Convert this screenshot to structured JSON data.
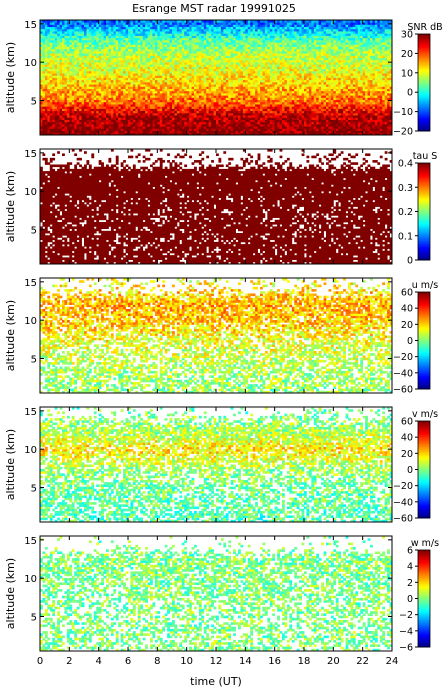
{
  "title": "Esrange MST radar 19991025",
  "xlabel": "time (UT)",
  "x_ticks": [
    0,
    2,
    4,
    6,
    8,
    10,
    12,
    14,
    16,
    18,
    20,
    22,
    24
  ],
  "chart_data": [
    {
      "type": "heatmap",
      "variable": "SNR",
      "colorbar_label": "SNR dB",
      "ylabel": "altitude (km)",
      "xlim": [
        0,
        24
      ],
      "ylim": [
        0.5,
        15.5
      ],
      "y_ticks": [
        5,
        10,
        15
      ],
      "clim": [
        -20,
        30
      ],
      "colorbar_ticks": [
        -20,
        -10,
        0,
        10,
        20,
        30
      ],
      "colorbar_ticklabels": [
        "−20",
        "−10",
        "0",
        "10",
        "20",
        "30"
      ],
      "profile": [
        {
          "altitude": 1,
          "value": 30
        },
        {
          "altitude": 3,
          "value": 27
        },
        {
          "altitude": 5,
          "value": 18
        },
        {
          "altitude": 7,
          "value": 14
        },
        {
          "altitude": 9,
          "value": 10
        },
        {
          "altitude": 11,
          "value": 8
        },
        {
          "altitude": 13,
          "value": 3
        },
        {
          "altitude": 15,
          "value": -8
        }
      ],
      "coverage_by_altitude": [
        {
          "altitude": 1,
          "coverage": 1.0
        },
        {
          "altitude": 15,
          "coverage": 1.0
        }
      ]
    },
    {
      "type": "heatmap",
      "variable": "tau",
      "colorbar_label": "tau S",
      "ylabel": "altitude (km)",
      "xlim": [
        0,
        24
      ],
      "ylim": [
        0.5,
        15.5
      ],
      "y_ticks": [
        5,
        10,
        15
      ],
      "clim": [
        0,
        0.4
      ],
      "colorbar_ticks": [
        0,
        0.1,
        0.2,
        0.3,
        0.4
      ],
      "colorbar_ticklabels": [
        "0",
        "0.1",
        "0.2",
        "0.3",
        "0.4"
      ],
      "profile": [
        {
          "altitude": 1,
          "value": 0.4
        },
        {
          "altitude": 15,
          "value": 0.4
        }
      ],
      "coverage_by_altitude": [
        {
          "altitude": 1,
          "coverage": 0.85
        },
        {
          "altitude": 6,
          "coverage": 0.8
        },
        {
          "altitude": 10,
          "coverage": 0.92
        },
        {
          "altitude": 12.5,
          "coverage": 0.95
        },
        {
          "altitude": 13.5,
          "coverage": 0.25
        },
        {
          "altitude": 15,
          "coverage": 0.1
        }
      ]
    },
    {
      "type": "heatmap",
      "variable": "u",
      "colorbar_label": "u m/s",
      "ylabel": "altitude (km)",
      "xlim": [
        0,
        24
      ],
      "ylim": [
        0.5,
        15.5
      ],
      "y_ticks": [
        5,
        10,
        15
      ],
      "clim": [
        -60,
        60
      ],
      "colorbar_ticks": [
        -60,
        -40,
        -20,
        0,
        20,
        40,
        60
      ],
      "colorbar_ticklabels": [
        "−60",
        "−40",
        "−20",
        "0",
        "20",
        "40",
        "60"
      ],
      "profile": [
        {
          "altitude": 1,
          "value": 2
        },
        {
          "altitude": 4,
          "value": 6
        },
        {
          "altitude": 7,
          "value": 12
        },
        {
          "altitude": 10,
          "value": 22
        },
        {
          "altitude": 12,
          "value": 25
        },
        {
          "altitude": 14,
          "value": 18
        },
        {
          "altitude": 15,
          "value": 14
        }
      ],
      "coverage_by_altitude": [
        {
          "altitude": 1,
          "coverage": 0.6
        },
        {
          "altitude": 6,
          "coverage": 0.55
        },
        {
          "altitude": 10,
          "coverage": 0.75
        },
        {
          "altitude": 12.5,
          "coverage": 0.85
        },
        {
          "altitude": 14,
          "coverage": 0.3
        },
        {
          "altitude": 15,
          "coverage": 0.15
        }
      ]
    },
    {
      "type": "heatmap",
      "variable": "v",
      "colorbar_label": "v m/s",
      "ylabel": "altitude (km)",
      "xlim": [
        0,
        24
      ],
      "ylim": [
        0.5,
        15.5
      ],
      "y_ticks": [
        5,
        10,
        15
      ],
      "clim": [
        -60,
        60
      ],
      "colorbar_ticks": [
        -60,
        -40,
        -20,
        0,
        20,
        40,
        60
      ],
      "colorbar_ticklabels": [
        "−60",
        "−40",
        "−20",
        "0",
        "20",
        "40",
        "60"
      ],
      "profile": [
        {
          "altitude": 1,
          "value": -5
        },
        {
          "altitude": 4,
          "value": -3
        },
        {
          "altitude": 7,
          "value": 2
        },
        {
          "altitude": 10,
          "value": 18
        },
        {
          "altitude": 12,
          "value": 6
        },
        {
          "altitude": 15,
          "value": -2
        }
      ],
      "coverage_by_altitude": [
        {
          "altitude": 1,
          "coverage": 0.6
        },
        {
          "altitude": 6,
          "coverage": 0.55
        },
        {
          "altitude": 10,
          "coverage": 0.75
        },
        {
          "altitude": 12.5,
          "coverage": 0.85
        },
        {
          "altitude": 14,
          "coverage": 0.3
        },
        {
          "altitude": 15,
          "coverage": 0.15
        }
      ]
    },
    {
      "type": "heatmap",
      "variable": "w",
      "colorbar_label": "w m/s",
      "ylabel": "altitude (km)",
      "xlim": [
        0,
        24
      ],
      "ylim": [
        0.5,
        15.5
      ],
      "y_ticks": [
        5,
        10,
        15
      ],
      "clim": [
        -6,
        6
      ],
      "colorbar_ticks": [
        -6,
        -4,
        -2,
        0,
        2,
        4,
        6
      ],
      "colorbar_ticklabels": [
        "−6",
        "−4",
        "−2",
        "0",
        "2",
        "4",
        "6"
      ],
      "profile": [
        {
          "altitude": 1,
          "value": 0
        },
        {
          "altitude": 15,
          "value": 0
        }
      ],
      "coverage_by_altitude": [
        {
          "altitude": 1,
          "coverage": 0.45
        },
        {
          "altitude": 6,
          "coverage": 0.45
        },
        {
          "altitude": 10,
          "coverage": 0.6
        },
        {
          "altitude": 12.5,
          "coverage": 0.7
        },
        {
          "altitude": 14,
          "coverage": 0.1
        },
        {
          "altitude": 15,
          "coverage": 0.05
        }
      ]
    }
  ]
}
